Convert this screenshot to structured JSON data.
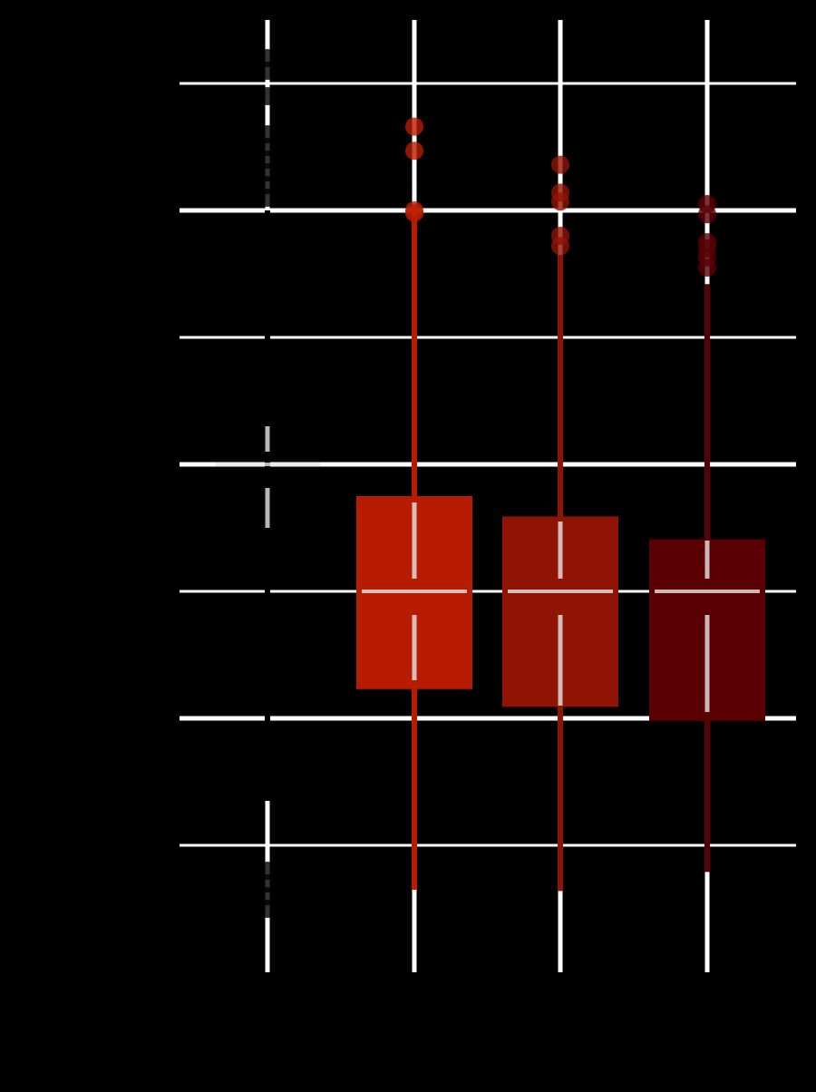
{
  "chart_data": {
    "type": "box",
    "title": "",
    "xlabel": "",
    "ylabel": "",
    "ylim": [
      -4,
      3.5
    ],
    "y_gridlines": [
      -3,
      -2,
      -1,
      0,
      1,
      2,
      3
    ],
    "grid": true,
    "colors": {
      "background": "#000000",
      "grid": "#ffffff",
      "group_1": "#000000",
      "group_2": "#b81c00",
      "group_3": "#901404",
      "group_4": "#5a0005",
      "overlay": "#e6e6e6"
    },
    "boxes": [
      {
        "color_key": "group_1",
        "q1": 0.0,
        "median": 0.0,
        "q3": 0.0,
        "whisker_low": -2.65,
        "whisker_high": 2.0,
        "mean": 0.0,
        "mean_ci": [
          -0.5,
          0.3
        ],
        "outliers": [
          -3.2,
          -3.3,
          -3.4,
          -3.5,
          2.1,
          2.2,
          2.3,
          2.4,
          2.5,
          2.6,
          2.9,
          3.1,
          3.2
        ]
      },
      {
        "color_key": "group_2",
        "q1": -1.77,
        "median": -1.0,
        "q3": -0.25,
        "whisker_low": -3.35,
        "whisker_high": 1.95,
        "mean": -1.0,
        "mean_ci": [
          -1.7,
          -0.3
        ],
        "outliers": [
          1.98,
          2.0,
          2.47,
          2.66
        ]
      },
      {
        "color_key": "group_3",
        "q1": -1.91,
        "median": -1.0,
        "q3": -0.41,
        "whisker_low": -3.36,
        "whisker_high": 1.65,
        "mean": -1.0,
        "mean_ci": [
          -1.9,
          -0.45
        ],
        "outliers": [
          1.72,
          1.8,
          2.07,
          2.14,
          2.36
        ]
      },
      {
        "color_key": "group_4",
        "q1": -2.02,
        "median": -1.0,
        "q3": -0.59,
        "whisker_low": -3.21,
        "whisker_high": 1.42,
        "mean": -1.0,
        "mean_ci": [
          -1.95,
          -0.6
        ],
        "outliers": [
          1.55,
          1.63,
          1.7,
          1.75,
          1.97,
          2.05
        ]
      }
    ]
  }
}
